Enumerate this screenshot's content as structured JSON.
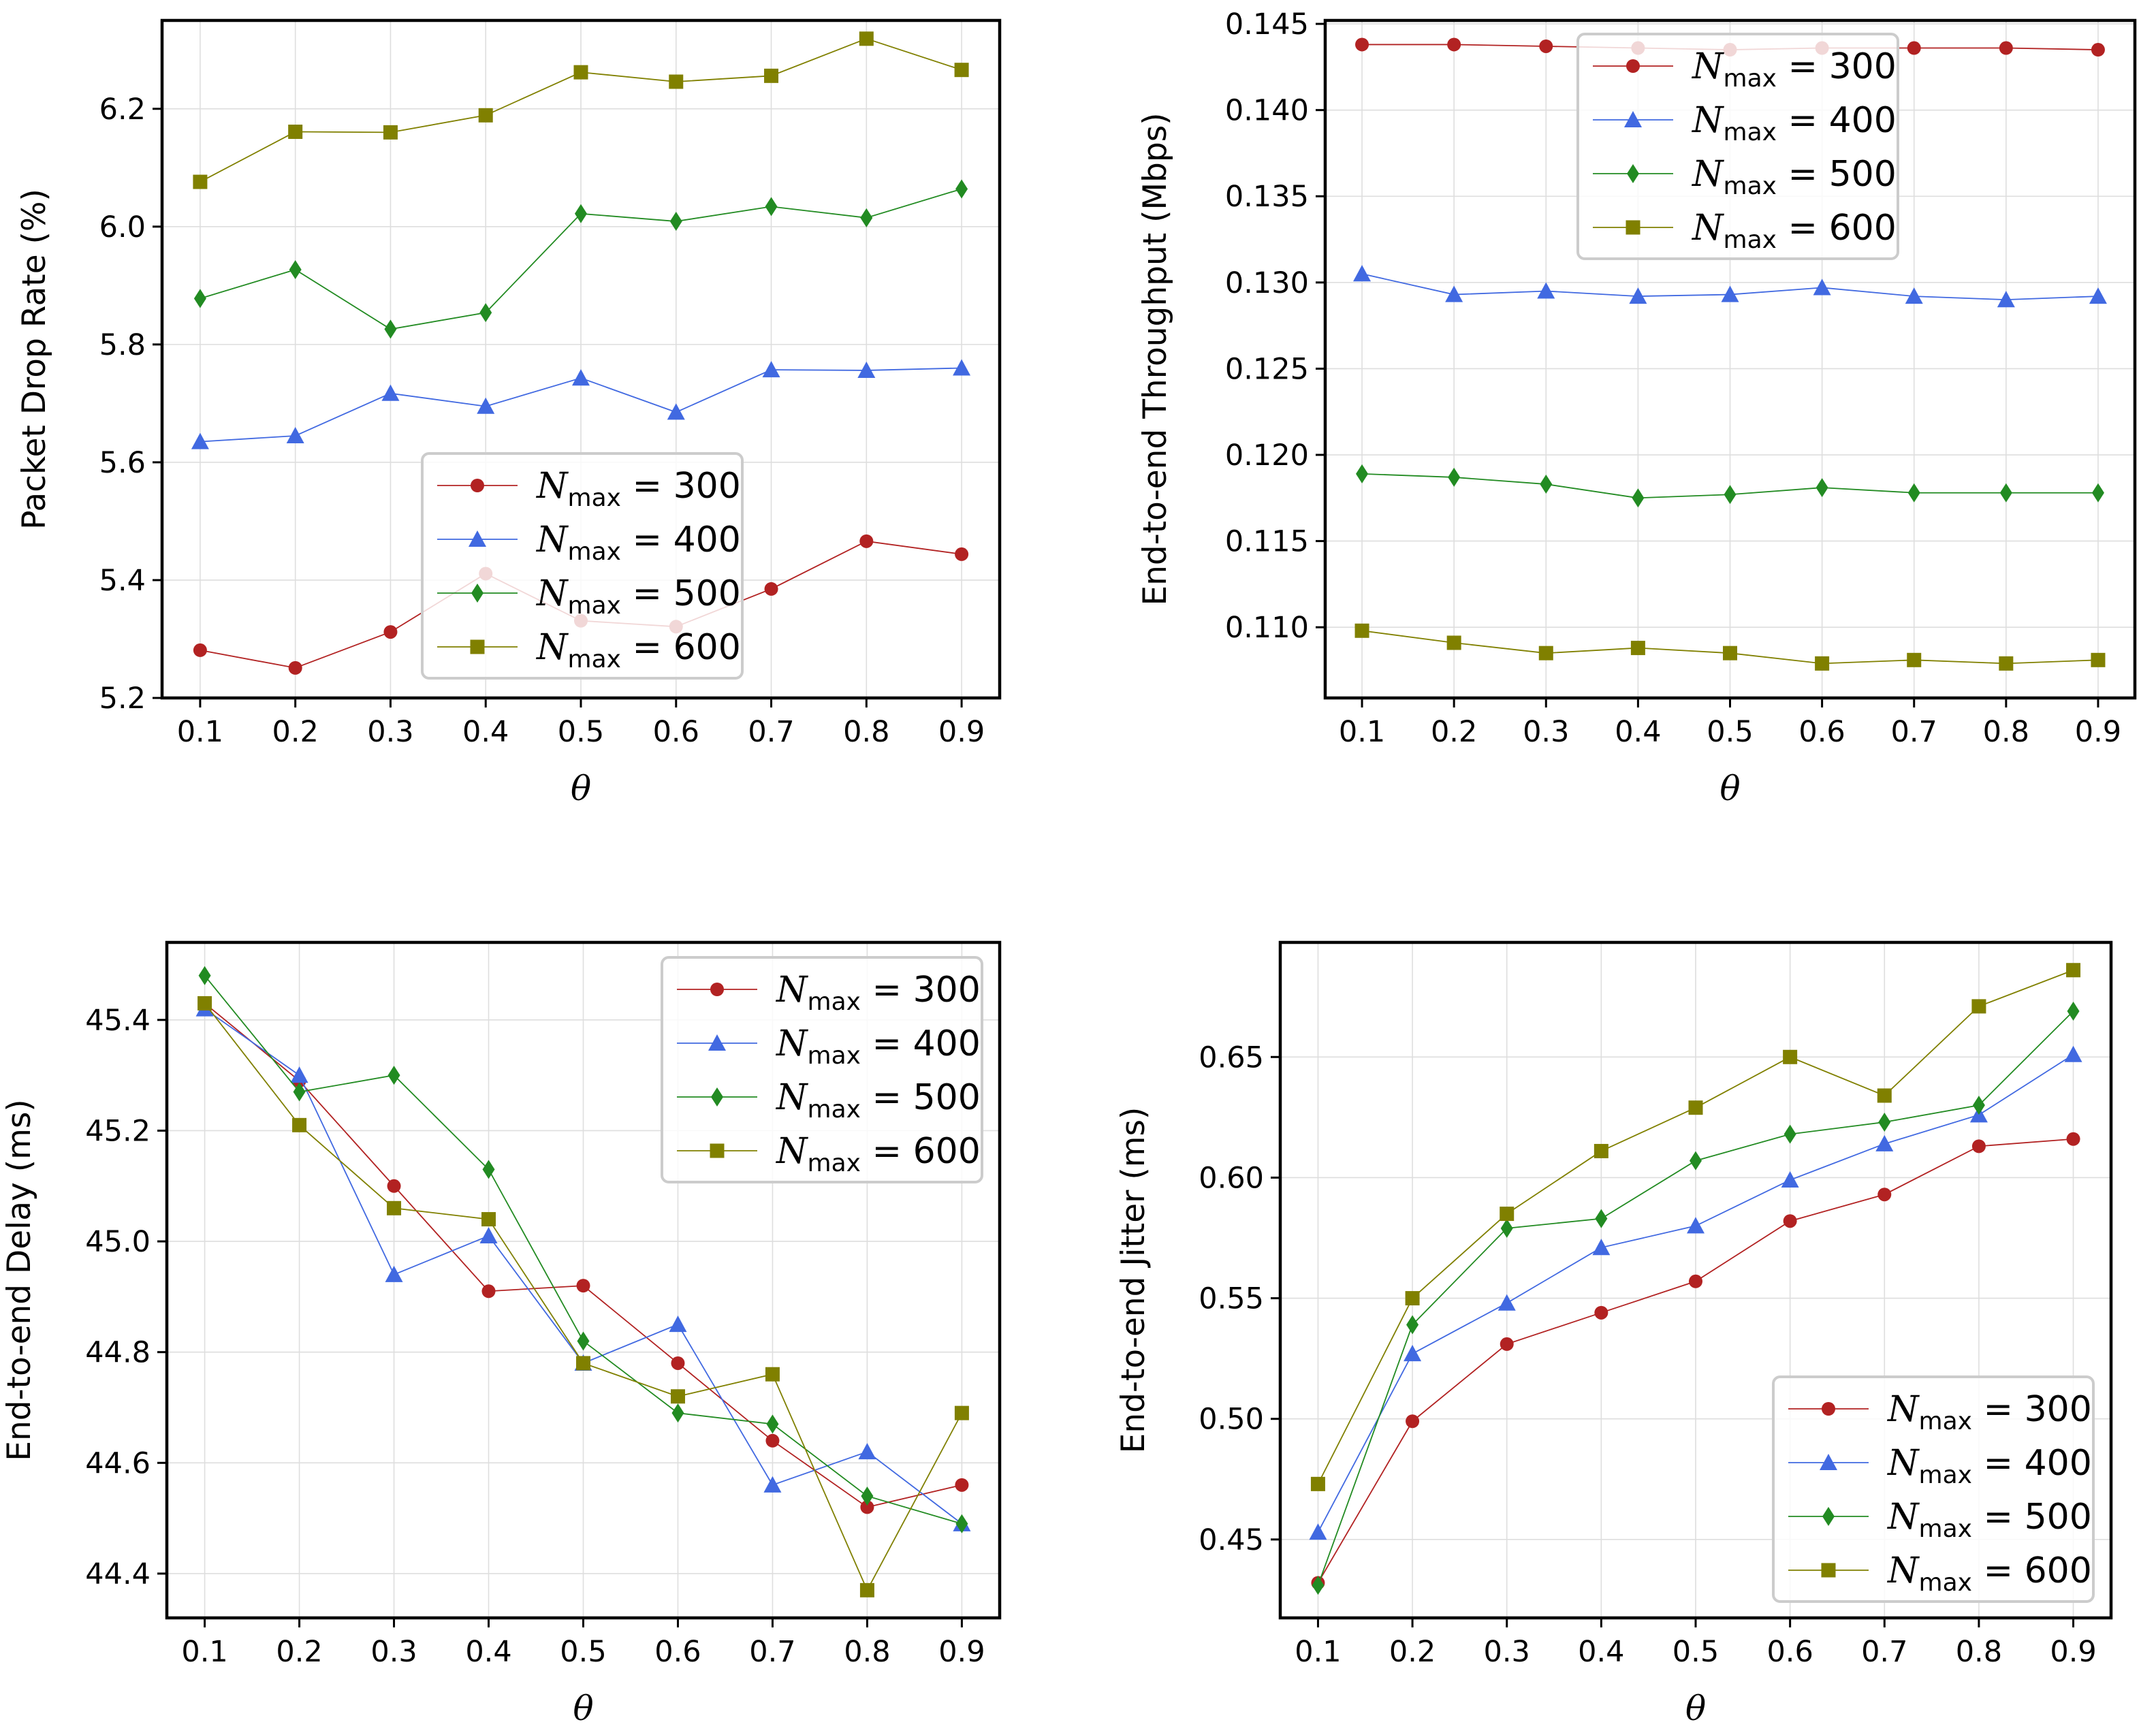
{
  "colors": {
    "N300": "#b22222",
    "N400": "#4169e1",
    "N500": "#228b22",
    "N600": "#808000"
  },
  "legend": {
    "symbol": "N",
    "subscript": "max",
    "entries": [
      "300",
      "400",
      "500",
      "600"
    ]
  },
  "chart_data": [
    {
      "type": "line",
      "ylabel": "Packet Drop Rate (%)",
      "xlabel": "θ",
      "x": [
        0.1,
        0.2,
        0.3,
        0.4,
        0.5,
        0.6,
        0.7,
        0.8,
        0.9
      ],
      "xticks": [
        "0.1",
        "0.2",
        "0.3",
        "0.4",
        "0.5",
        "0.6",
        "0.7",
        "0.8",
        "0.9"
      ],
      "ylim": [
        5.2,
        6.35
      ],
      "yticks": [
        "5.2",
        "5.4",
        "5.6",
        "5.8",
        "6.0",
        "6.2"
      ],
      "grid": true,
      "legend_position": "lower-center",
      "series": [
        {
          "name": "N_max = 300",
          "marker": "circle",
          "values": [
            5.281,
            5.251,
            5.312,
            5.411,
            5.331,
            5.321,
            5.385,
            5.466,
            5.444
          ]
        },
        {
          "name": "N_max = 400",
          "marker": "triangle",
          "values": [
            5.635,
            5.645,
            5.717,
            5.695,
            5.743,
            5.685,
            5.757,
            5.756,
            5.76
          ]
        },
        {
          "name": "N_max = 500",
          "marker": "diamond",
          "values": [
            5.878,
            5.927,
            5.826,
            5.854,
            6.022,
            6.009,
            6.034,
            6.015,
            6.064
          ]
        },
        {
          "name": "N_max = 600",
          "marker": "square",
          "values": [
            6.076,
            6.161,
            6.16,
            6.189,
            6.262,
            6.246,
            6.256,
            6.319,
            6.266
          ]
        }
      ]
    },
    {
      "type": "line",
      "ylabel": "End-to-end Throughput (Mbps)",
      "xlabel": "θ",
      "x": [
        0.1,
        0.2,
        0.3,
        0.4,
        0.5,
        0.6,
        0.7,
        0.8,
        0.9
      ],
      "xticks": [
        "0.1",
        "0.2",
        "0.3",
        "0.4",
        "0.5",
        "0.6",
        "0.7",
        "0.8",
        "0.9"
      ],
      "ylim": [
        0.1059,
        0.1452
      ],
      "yticks": [
        "0.110",
        "0.115",
        "0.120",
        "0.125",
        "0.130",
        "0.135",
        "0.140",
        "0.145"
      ],
      "grid": true,
      "legend_position": "upper-center",
      "series": [
        {
          "name": "N_max = 300",
          "marker": "circle",
          "values": [
            0.1438,
            0.1438,
            0.1437,
            0.1436,
            0.1435,
            0.1436,
            0.1436,
            0.1436,
            0.1435
          ]
        },
        {
          "name": "N_max = 400",
          "marker": "triangle",
          "values": [
            0.1305,
            0.1293,
            0.1295,
            0.1292,
            0.1293,
            0.1297,
            0.1292,
            0.129,
            0.1292
          ]
        },
        {
          "name": "N_max = 500",
          "marker": "diamond",
          "values": [
            0.1189,
            0.1187,
            0.1183,
            0.1175,
            0.1177,
            0.1181,
            0.1178,
            0.1178,
            0.1178
          ]
        },
        {
          "name": "N_max = 600",
          "marker": "square",
          "values": [
            0.1098,
            0.1091,
            0.1085,
            0.1088,
            0.1085,
            0.1079,
            0.1081,
            0.1079,
            0.1081
          ]
        }
      ]
    },
    {
      "type": "line",
      "ylabel": "End-to-end Delay (ms)",
      "xlabel": "θ",
      "x": [
        0.1,
        0.2,
        0.3,
        0.4,
        0.5,
        0.6,
        0.7,
        0.8,
        0.9
      ],
      "xticks": [
        "0.1",
        "0.2",
        "0.3",
        "0.4",
        "0.5",
        "0.6",
        "0.7",
        "0.8",
        "0.9"
      ],
      "ylim": [
        44.32,
        45.54
      ],
      "yticks": [
        "44.4",
        "44.6",
        "44.8",
        "45.0",
        "45.2",
        "45.4"
      ],
      "grid": true,
      "legend_position": "upper-right",
      "series": [
        {
          "name": "N_max = 300",
          "marker": "circle",
          "values": [
            45.43,
            45.29,
            45.1,
            44.91,
            44.92,
            44.78,
            44.64,
            44.52,
            44.56
          ]
        },
        {
          "name": "N_max = 400",
          "marker": "triangle",
          "values": [
            45.42,
            45.3,
            44.94,
            45.01,
            44.78,
            44.85,
            44.56,
            44.62,
            44.49
          ]
        },
        {
          "name": "N_max = 500",
          "marker": "diamond",
          "values": [
            45.48,
            45.27,
            45.3,
            45.13,
            44.82,
            44.69,
            44.67,
            44.54,
            44.49
          ]
        },
        {
          "name": "N_max = 600",
          "marker": "square",
          "values": [
            45.43,
            45.21,
            45.06,
            45.04,
            44.78,
            44.72,
            44.76,
            44.37,
            44.69
          ]
        }
      ]
    },
    {
      "type": "line",
      "ylabel": "End-to-end Jitter (ms)",
      "xlabel": "θ",
      "x": [
        0.1,
        0.2,
        0.3,
        0.4,
        0.5,
        0.6,
        0.7,
        0.8,
        0.9
      ],
      "xticks": [
        "0.1",
        "0.2",
        "0.3",
        "0.4",
        "0.5",
        "0.6",
        "0.7",
        "0.8",
        "0.9"
      ],
      "ylim": [
        0.4175,
        0.6975
      ],
      "yticks": [
        "0.45",
        "0.50",
        "0.55",
        "0.60",
        "0.65"
      ],
      "grid": true,
      "legend_position": "lower-right",
      "series": [
        {
          "name": "N_max = 300",
          "marker": "circle",
          "values": [
            0.432,
            0.499,
            0.531,
            0.544,
            0.557,
            0.582,
            0.593,
            0.613,
            0.616
          ]
        },
        {
          "name": "N_max = 400",
          "marker": "triangle",
          "values": [
            0.453,
            0.527,
            0.548,
            0.571,
            0.58,
            0.599,
            0.614,
            0.626,
            0.651
          ]
        },
        {
          "name": "N_max = 500",
          "marker": "diamond",
          "values": [
            0.431,
            0.539,
            0.579,
            0.583,
            0.607,
            0.618,
            0.623,
            0.63,
            0.669
          ]
        },
        {
          "name": "N_max = 600",
          "marker": "square",
          "values": [
            0.473,
            0.55,
            0.585,
            0.611,
            0.629,
            0.65,
            0.634,
            0.671,
            0.686
          ]
        }
      ]
    }
  ]
}
